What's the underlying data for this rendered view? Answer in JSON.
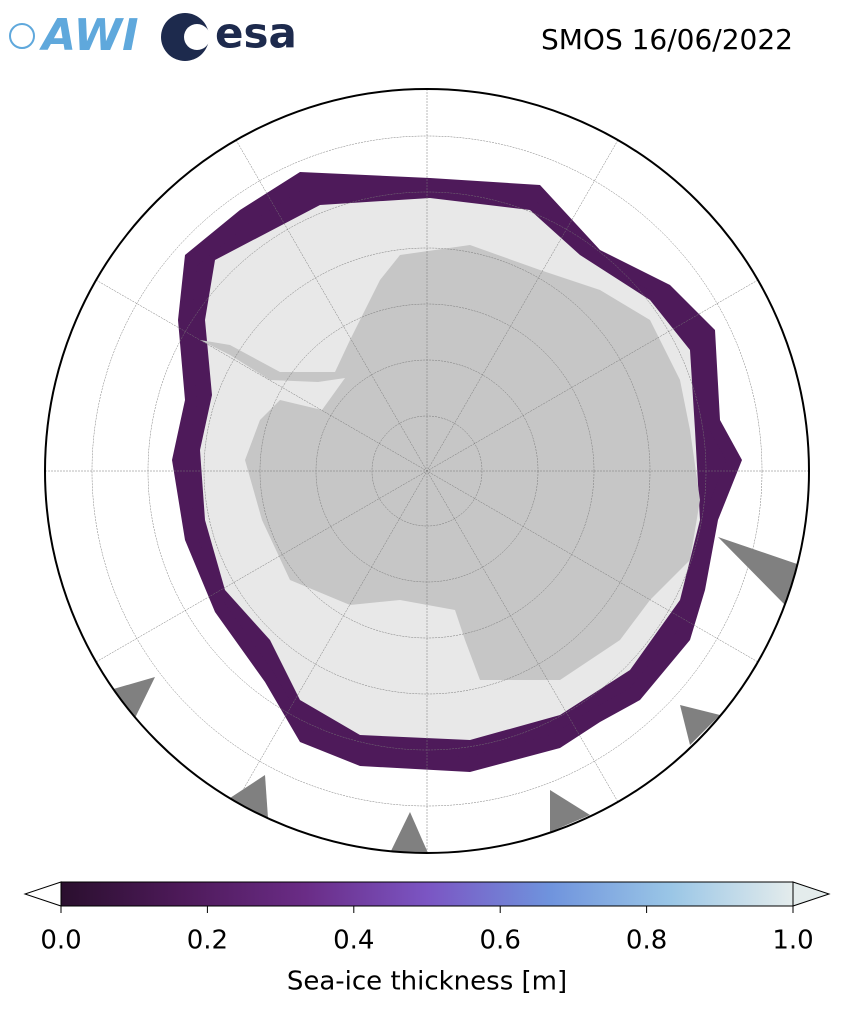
{
  "header": {
    "logos": [
      "AWI",
      "esa"
    ],
    "title": "SMOS 16/06/2022"
  },
  "colorbar": {
    "label": "Sea-ice thickness [m]",
    "lim": [
      0,
      1
    ],
    "ticks": [
      {
        "value": 0,
        "label": "0.0"
      },
      {
        "value": 0.2,
        "label": "0.2"
      },
      {
        "value": 0.4,
        "label": "0.4"
      },
      {
        "value": 0.6,
        "label": "0.6"
      },
      {
        "value": 0.8,
        "label": "0.8"
      },
      {
        "value": 1,
        "label": "1.0"
      }
    ],
    "colors": [
      "#2a0f2e",
      "#4e1a5a",
      "#6a2c86",
      "#7b55c3",
      "#6f93dd",
      "#9ac6e6",
      "#e4ecec"
    ],
    "extend": "both"
  }
}
